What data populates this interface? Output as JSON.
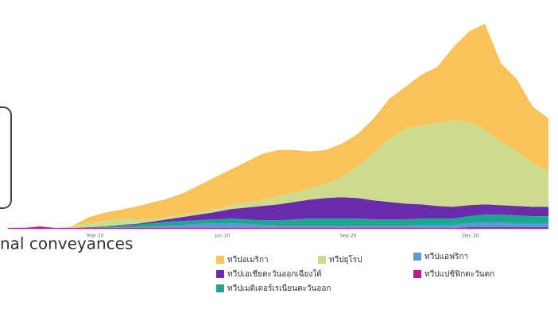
{
  "chart_data": {
    "type": "stacked-area",
    "side_text": "nal conveyances",
    "xlim": [
      0,
      34
    ],
    "xticks": [
      {
        "value": 5.5,
        "label": "Mar 20"
      },
      {
        "value": 13.5,
        "label": "Jun 20"
      },
      {
        "value": 21.4,
        "label": "Sep 20"
      },
      {
        "value": 29.1,
        "label": "Dec 20"
      }
    ],
    "ylim": [
      0,
      290
    ],
    "series": [
      {
        "name": "ทวีปแปซิฟิกตะวันตก",
        "color": "#c2188a",
        "values": [
          1,
          1,
          3,
          1,
          1,
          1,
          1,
          1,
          1,
          1,
          1,
          1,
          1,
          1,
          1,
          1,
          1,
          1,
          1,
          1,
          1,
          1,
          1,
          1,
          1,
          1,
          1,
          1,
          1,
          2,
          2,
          2,
          2,
          2,
          2
        ]
      },
      {
        "name": "ทวีปแอฟริกา",
        "color": "#5b9bd5",
        "values": [
          0,
          0,
          0,
          0,
          0,
          0,
          0,
          1,
          1,
          2,
          3,
          4,
          5,
          6,
          6,
          5,
          4,
          3,
          3,
          3,
          3,
          3,
          3,
          3,
          3,
          3,
          4,
          4,
          4,
          5,
          6,
          6,
          5,
          5,
          5
        ]
      },
      {
        "name": "ทวีปเมดิเตอร์เรเนียนตะวันออก",
        "color": "#1aa88f",
        "values": [
          0,
          0,
          0,
          0,
          0,
          1,
          2,
          3,
          3,
          4,
          5,
          5,
          5,
          5,
          6,
          6,
          6,
          7,
          8,
          9,
          9,
          9,
          9,
          8,
          8,
          8,
          8,
          8,
          8,
          9,
          10,
          10,
          10,
          9,
          9
        ]
      },
      {
        "name": "ทวีปเอเชียตะวันออกเฉียงใต้",
        "color": "#6a2bb0",
        "values": [
          0,
          0,
          0,
          0,
          0,
          0,
          0,
          0,
          1,
          2,
          3,
          5,
          7,
          9,
          12,
          15,
          18,
          20,
          22,
          24,
          26,
          27,
          26,
          24,
          22,
          20,
          18,
          16,
          15,
          14,
          13,
          12,
          12,
          12,
          12
        ]
      },
      {
        "name": "ทวีปยุโรป",
        "color": "#cddc8c",
        "values": [
          0,
          1,
          0,
          0,
          2,
          5,
          7,
          8,
          6,
          4,
          3,
          3,
          3,
          4,
          5,
          6,
          7,
          10,
          12,
          14,
          18,
          25,
          40,
          60,
          80,
          95,
          100,
          105,
          110,
          105,
          95,
          80,
          70,
          55,
          45
        ]
      },
      {
        "name": "ทวีปอเมริกา",
        "color": "#f9c35a",
        "values": [
          0,
          0,
          0,
          0,
          0,
          7,
          10,
          11,
          16,
          20,
          23,
          27,
          34,
          40,
          45,
          52,
          59,
          59,
          54,
          47,
          43,
          43,
          41,
          44,
          51,
          53,
          64,
          71,
          92,
          115,
          134,
          100,
          91,
          72,
          67
        ]
      }
    ]
  }
}
